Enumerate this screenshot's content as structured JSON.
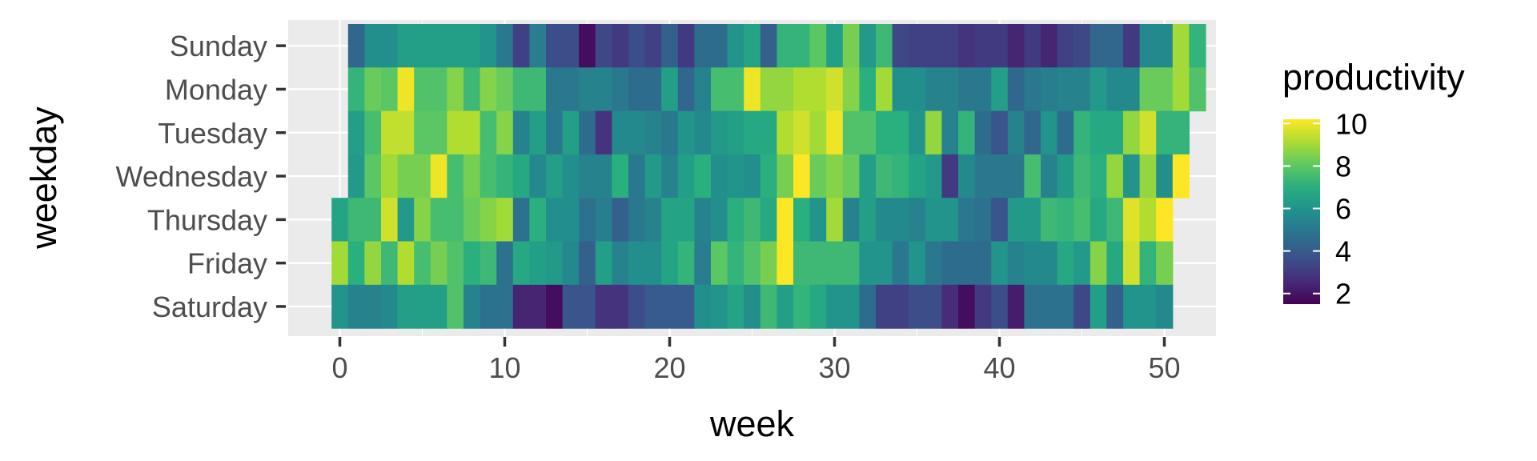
{
  "chart_data": {
    "type": "heatmap",
    "title": "",
    "xlabel": "week",
    "ylabel": "weekday",
    "x_ticks": [
      0,
      10,
      20,
      30,
      40,
      50
    ],
    "xlim": [
      -0.5,
      50.5
    ],
    "y_categories": [
      "Sunday",
      "Monday",
      "Tuesday",
      "Wednesday",
      "Thursday",
      "Friday",
      "Saturday"
    ],
    "grid": true,
    "panel_background": "#ebebeb",
    "grid_color": "#ffffff",
    "colorscale": "viridis",
    "legend": {
      "title": "productivity",
      "position": "right",
      "min": 1.5,
      "max": 10.2,
      "ticks": [
        2,
        4,
        6,
        8,
        10
      ]
    },
    "rows": [
      {
        "weekday": "Sunday",
        "start_week": 1,
        "values": [
          4.4,
          5.8,
          5.8,
          6.4,
          6.4,
          6.4,
          6.4,
          6.4,
          6.0,
          5.0,
          3.2,
          5.2,
          3.6,
          3.6,
          1.8,
          3.4,
          3.0,
          3.6,
          3.2,
          4.2,
          3.0,
          4.6,
          4.6,
          6.0,
          6.6,
          4.2,
          7.2,
          7.2,
          8.0,
          6.4,
          8.4,
          6.2,
          7.4,
          3.4,
          3.2,
          3.2,
          3.2,
          2.8,
          3.0,
          3.0,
          2.4,
          3.0,
          2.4,
          3.2,
          3.4,
          4.4,
          4.4,
          3.0,
          5.6,
          5.6,
          9.0,
          7.2
        ]
      },
      {
        "weekday": "Monday",
        "start_week": 1,
        "values": [
          7.2,
          8.2,
          8.0,
          10.0,
          7.8,
          7.8,
          8.6,
          7.4,
          8.6,
          8.2,
          7.4,
          7.4,
          5.0,
          5.0,
          5.4,
          5.4,
          5.0,
          4.6,
          4.6,
          6.4,
          4.4,
          5.4,
          7.6,
          7.6,
          10.0,
          8.8,
          8.8,
          9.2,
          9.2,
          9.6,
          8.6,
          7.0,
          9.0,
          5.8,
          5.8,
          5.4,
          5.4,
          5.0,
          5.0,
          6.4,
          4.4,
          5.0,
          5.2,
          5.4,
          5.4,
          6.2,
          5.6,
          5.6,
          8.2,
          8.2,
          9.0,
          7.8
        ]
      },
      {
        "weekday": "Tuesday",
        "start_week": 1,
        "values": [
          6.4,
          7.6,
          9.4,
          9.4,
          8.0,
          8.0,
          9.2,
          9.2,
          7.6,
          8.6,
          5.4,
          6.4,
          5.0,
          6.4,
          4.6,
          2.8,
          5.6,
          5.6,
          5.4,
          5.0,
          6.0,
          5.6,
          6.2,
          6.4,
          6.8,
          6.8,
          9.2,
          9.6,
          9.0,
          10.0,
          7.8,
          7.8,
          7.0,
          7.0,
          6.0,
          8.8,
          5.4,
          7.2,
          4.6,
          3.8,
          5.4,
          4.4,
          6.0,
          4.6,
          7.2,
          6.8,
          6.8,
          8.8,
          9.6,
          7.2,
          7.2
        ]
      },
      {
        "weekday": "Wednesday",
        "start_week": 1,
        "values": [
          6.2,
          8.0,
          9.0,
          8.4,
          8.4,
          10.0,
          7.6,
          8.4,
          7.6,
          7.2,
          6.8,
          5.6,
          6.4,
          5.8,
          5.4,
          5.4,
          7.0,
          5.0,
          6.2,
          5.4,
          6.4,
          7.0,
          5.8,
          6.0,
          5.8,
          7.0,
          8.4,
          10.2,
          8.2,
          8.6,
          8.2,
          6.4,
          7.4,
          7.2,
          6.6,
          6.2,
          3.0,
          5.6,
          5.0,
          5.0,
          5.0,
          7.6,
          5.4,
          6.2,
          7.4,
          7.0,
          8.8,
          6.0,
          8.8,
          5.8,
          10.2
        ]
      },
      {
        "weekday": "Thursday",
        "start_week": 0,
        "values": [
          6.6,
          7.4,
          7.4,
          9.6,
          6.2,
          8.6,
          7.6,
          7.6,
          8.2,
          8.6,
          9.0,
          4.8,
          7.0,
          5.8,
          5.8,
          4.8,
          5.2,
          4.2,
          5.0,
          5.4,
          6.6,
          6.6,
          5.4,
          5.8,
          7.0,
          7.4,
          6.8,
          10.2,
          7.0,
          6.0,
          9.0,
          5.4,
          6.4,
          5.6,
          5.6,
          5.4,
          6.0,
          6.0,
          5.0,
          4.8,
          3.8,
          6.2,
          6.2,
          7.4,
          7.2,
          7.6,
          6.8,
          7.4,
          9.8,
          9.2,
          10.2
        ]
      },
      {
        "weekday": "Friday",
        "start_week": 0,
        "values": [
          9.0,
          7.0,
          8.8,
          7.4,
          9.2,
          7.6,
          8.4,
          7.8,
          7.0,
          7.4,
          4.8,
          6.8,
          6.4,
          6.2,
          5.6,
          4.2,
          6.4,
          5.4,
          5.8,
          5.8,
          6.6,
          7.2,
          5.2,
          8.0,
          7.2,
          7.8,
          8.4,
          10.2,
          7.4,
          7.4,
          7.4,
          7.4,
          6.0,
          6.0,
          5.0,
          6.0,
          5.0,
          4.6,
          4.6,
          4.6,
          6.0,
          5.4,
          5.6,
          5.6,
          6.8,
          6.2,
          8.6,
          6.8,
          9.6,
          7.2,
          8.4
        ]
      },
      {
        "weekday": "Saturday",
        "start_week": 0,
        "values": [
          6.0,
          5.4,
          5.4,
          5.6,
          6.4,
          6.4,
          6.4,
          7.8,
          5.4,
          4.8,
          4.8,
          2.4,
          2.4,
          1.8,
          3.8,
          3.8,
          2.8,
          2.8,
          3.6,
          4.0,
          4.0,
          4.0,
          5.8,
          6.0,
          6.6,
          5.8,
          7.4,
          6.4,
          7.2,
          6.8,
          6.0,
          6.0,
          4.6,
          3.2,
          3.2,
          3.6,
          3.6,
          2.6,
          1.8,
          3.0,
          3.6,
          2.2,
          4.8,
          4.8,
          4.8,
          3.4,
          6.4,
          4.2,
          6.0,
          6.0,
          5.6
        ]
      }
    ]
  }
}
